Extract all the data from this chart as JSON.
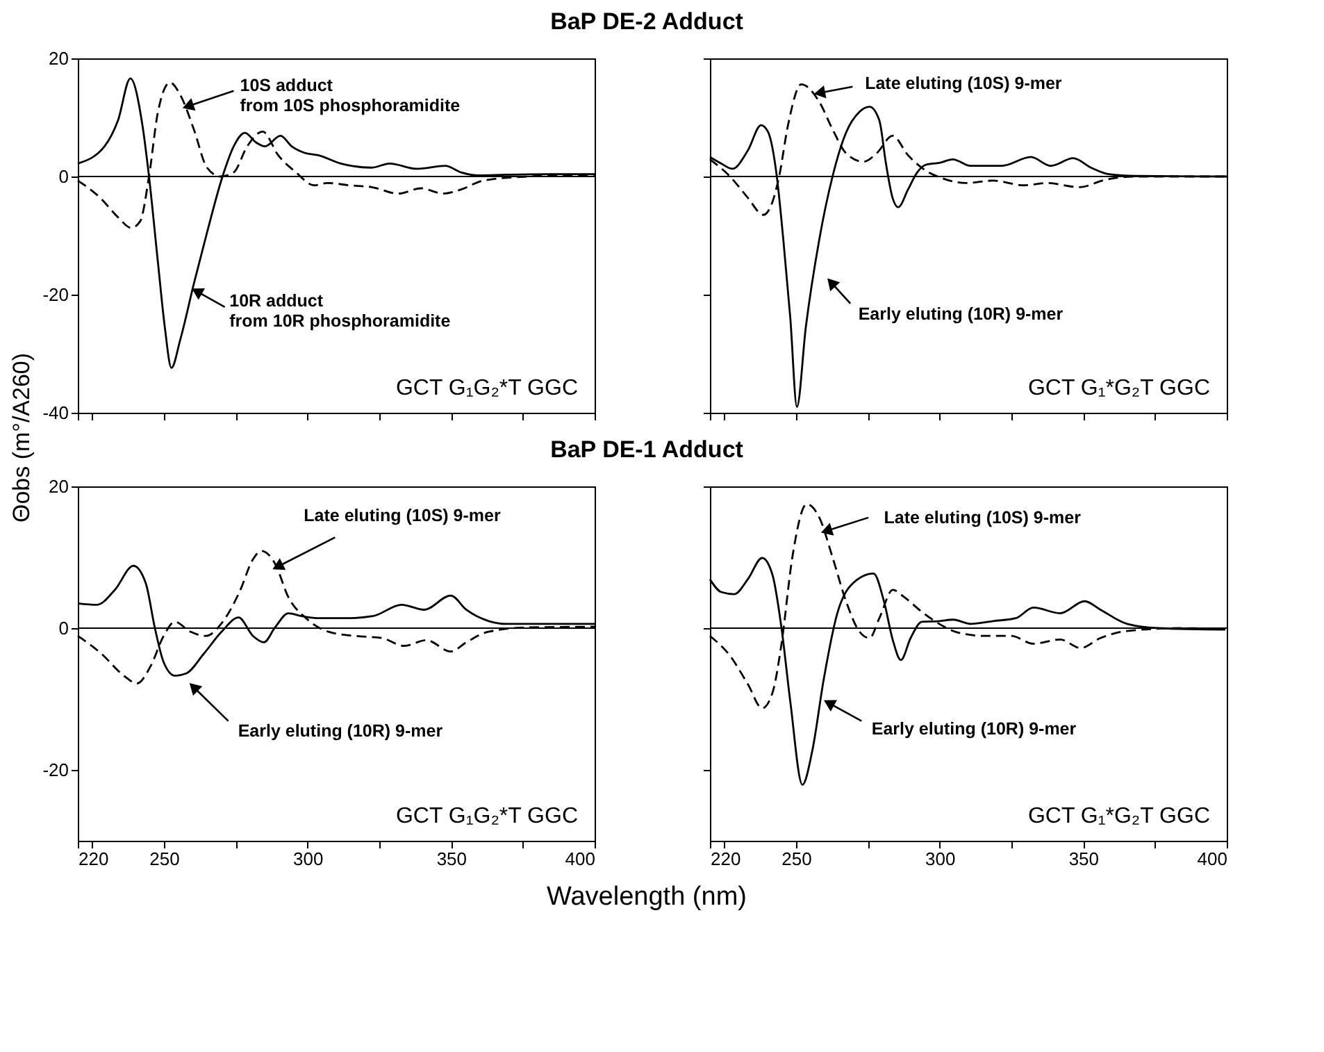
{
  "chart_data": [
    {
      "type": "line",
      "title": "BaP DE-2 Adduct",
      "xlim": [
        220,
        400
      ],
      "ylim": [
        -40,
        20
      ],
      "xticks": [
        220,
        {
          "value": 225,
          "label": null
        },
        250,
        {
          "value": 275,
          "label": null
        },
        300,
        {
          "value": 325,
          "label": null
        },
        350,
        {
          "value": 375,
          "label": null
        },
        400
      ],
      "yticks": [
        20,
        0,
        -20,
        -40
      ],
      "tick_labels": "y",
      "grid": false,
      "series": [
        {
          "color": "#000000",
          "line_style": "solid",
          "x": [
            220,
            229.3,
            234,
            238.3,
            242.5,
            244.8,
            247.9,
            250.3,
            252.6,
            255.7,
            260.4,
            265,
            270.4,
            274.3,
            278.2,
            282,
            285.2,
            290.6,
            294.5,
            299,
            303.8,
            311.6,
            322.4,
            328.6,
            338,
            348,
            353.5,
            359.7,
            369,
            384.5,
            400
          ],
          "values": [
            2.2,
            5.1,
            9.5,
            16.6,
            8.7,
            0,
            -14.5,
            -25.5,
            -32.4,
            -27.6,
            -18.2,
            -9.5,
            0,
            5.1,
            7.4,
            5.8,
            5.1,
            6.9,
            5.1,
            4,
            3.6,
            2.2,
            1.5,
            2.2,
            1.3,
            1.8,
            0.7,
            0.2,
            0.3,
            0.4,
            0.4
          ]
        },
        {
          "color": "#000000",
          "line_style": "dashed",
          "x": [
            220,
            227.8,
            234,
            238.6,
            241.7,
            244.8,
            247.9,
            252.1,
            255.7,
            260.4,
            265,
            269.7,
            274.3,
            279,
            284.4,
            289.8,
            296,
            302.3,
            307,
            314.7,
            322.4,
            331.7,
            339.5,
            347.3,
            353.5,
            361.2,
            376.8,
            400
          ],
          "values": [
            -0.7,
            -3.6,
            -6.9,
            -8.7,
            -7.6,
            0,
            10.9,
            15.9,
            13.8,
            8,
            1.5,
            0,
            0.7,
            5.1,
            7.6,
            3.6,
            0.7,
            -1.5,
            -1.1,
            -1.5,
            -1.8,
            -2.9,
            -2,
            -2.9,
            -2.2,
            -0.7,
            0,
            0.3
          ]
        }
      ],
      "ref_lines": [
        {
          "axis": "y",
          "value": 0,
          "color": "#000000"
        }
      ],
      "annotations": [
        {
          "text": "10S adduct\nfrom 10S phosphoramidite",
          "x": 259,
          "y": 12
        },
        {
          "text": "10R adduct\nfrom 10R phosphoramidite",
          "x": 262,
          "y": -19.6
        },
        "GCT G₁G₂*T GGC"
      ]
    },
    {
      "type": "line",
      "xlim": [
        220,
        400
      ],
      "ylim": [
        -40,
        20
      ],
      "xticks": [
        220,
        {
          "value": 225,
          "label": null
        },
        250,
        {
          "value": 275,
          "label": null
        },
        300,
        {
          "value": 325,
          "label": null
        },
        350,
        {
          "value": 375,
          "label": null
        },
        400
      ],
      "yticks": [
        20,
        0,
        -20,
        -40
      ],
      "tick_labels": false,
      "grid": false,
      "series": [
        {
          "color": "#000000",
          "line_style": "solid",
          "x": [
            220,
            223.9,
            227.8,
            233.2,
            237.8,
            240.2,
            243.3,
            245.6,
            248,
            250.3,
            253.4,
            258,
            262.7,
            267.3,
            272,
            275.6,
            279,
            281.3,
            283.6,
            285.6,
            289,
            292.2,
            295.3,
            299.9,
            304.6,
            310.8,
            321.7,
            331.8,
            338.7,
            346.5,
            352.7,
            358.9,
            368.2,
            400
          ],
          "values": [
            3.3,
            2.2,
            1.3,
            4.4,
            8.7,
            7.6,
            0,
            -10.9,
            -24,
            -39,
            -25.5,
            -10.9,
            0,
            7.3,
            10.9,
            11.8,
            9.5,
            2.2,
            -3.6,
            -5.2,
            -2.2,
            0.7,
            2,
            2.3,
            2.9,
            1.8,
            1.8,
            3.3,
            1.8,
            3.1,
            1.5,
            0.4,
            0.1,
            0
          ]
        },
        {
          "color": "#000000",
          "line_style": "dashed",
          "x": [
            220,
            227,
            233.2,
            238.6,
            241.7,
            244.1,
            247.2,
            251.8,
            258,
            262.7,
            267.3,
            273.5,
            278.2,
            283.6,
            289,
            293.7,
            301.5,
            309.2,
            318.6,
            329.4,
            337.2,
            348.8,
            357.4,
            368.2,
            400
          ],
          "values": [
            2.9,
            0,
            -3.6,
            -6.5,
            -4.4,
            0,
            8.7,
            15.6,
            12.7,
            8,
            4,
            2.5,
            4,
            6.9,
            3.6,
            1.5,
            -0.4,
            -1.1,
            -0.7,
            -1.5,
            -1.1,
            -1.8,
            -0.6,
            0,
            0
          ]
        }
      ],
      "ref_lines": [
        {
          "axis": "y",
          "value": 0,
          "color": "#000000"
        }
      ],
      "annotations": [
        {
          "text": "Late eluting (10S) 9-mer",
          "x": 258.8,
          "y": 14.2
        },
        {
          "text": "Early eluting (10R) 9-mer",
          "x": 262.7,
          "y": -18.2
        },
        "GCT G₁*G₂T GGC"
      ]
    },
    {
      "type": "line",
      "title": "BaP DE-1 Adduct",
      "xlabel": "Wavelength (nm)",
      "ylabel": "Θobs (m°/A260)",
      "xlim": [
        220,
        400
      ],
      "ylim": [
        -30,
        20
      ],
      "xticks": [
        220,
        {
          "value": 225,
          "label": null
        },
        250,
        {
          "value": 275,
          "label": null
        },
        300,
        {
          "value": 325,
          "label": null
        },
        350,
        {
          "value": 375,
          "label": null
        },
        400
      ],
      "yticks": [
        20,
        0,
        -20
      ],
      "grid": false,
      "series": [
        {
          "color": "#000000",
          "line_style": "solid",
          "x": [
            220,
            226.7,
            232.9,
            239.4,
            243.7,
            246.8,
            249.9,
            253.8,
            257.7,
            263.9,
            270.1,
            276,
            281,
            284.8,
            288.7,
            293.3,
            298,
            304.2,
            313.5,
            322.8,
            332.8,
            340.6,
            349.9,
            355.3,
            363.1,
            369.3,
            400
          ],
          "values": [
            3.5,
            3.3,
            5.4,
            8.8,
            6.3,
            0.1,
            -4.8,
            -6.7,
            -6.4,
            -3.6,
            -0.5,
            1.5,
            -1.1,
            -2,
            0.1,
            2.1,
            1.7,
            1.4,
            1.4,
            1.7,
            3.3,
            2.6,
            4.6,
            2.6,
            1,
            0.6,
            0.6
          ]
        },
        {
          "color": "#000000",
          "line_style": "dashed",
          "x": [
            220,
            228.2,
            236,
            240.6,
            245.3,
            249.9,
            253.8,
            259.2,
            264.6,
            270.1,
            276.3,
            281,
            284,
            288.7,
            293.3,
            299.5,
            307.3,
            316.6,
            325.9,
            333.6,
            341.4,
            349.9,
            355.3,
            363.1,
            377,
            400
          ],
          "values": [
            -1.1,
            -3.6,
            -6.7,
            -7.8,
            -5.4,
            -1.1,
            0.9,
            -0.5,
            -1.1,
            0.7,
            5.1,
            9.7,
            10.9,
            9.1,
            4.4,
            1.4,
            -0.5,
            -1.1,
            -1.4,
            -2.5,
            -1.7,
            -3.3,
            -2,
            -0.5,
            0.1,
            0.2
          ]
        }
      ],
      "ref_lines": [
        {
          "axis": "y",
          "value": 0,
          "color": "#000000"
        }
      ],
      "annotations": [
        {
          "text": "Late eluting (10S) 9-mer",
          "x": 290.2,
          "y": 8.8
        },
        {
          "text": "Early eluting (10R) 9-mer",
          "x": 260.8,
          "y": -8.5
        },
        "GCT G₁G₂*T GGC"
      ]
    },
    {
      "type": "line",
      "xlim": [
        220,
        400
      ],
      "ylim": [
        -30,
        20
      ],
      "xticks": [
        220,
        {
          "value": 225,
          "label": null
        },
        250,
        {
          "value": 275,
          "label": null
        },
        300,
        {
          "value": 325,
          "label": null
        },
        350,
        {
          "value": 375,
          "label": null
        },
        400
      ],
      "yticks": [
        20,
        0,
        -20
      ],
      "tick_labels": "x",
      "grid": false,
      "series": [
        {
          "color": "#000000",
          "line_style": "solid",
          "x": [
            220,
            223.9,
            228.5,
            233.2,
            238.2,
            241.8,
            244.9,
            248,
            252.2,
            255.7,
            259.6,
            264.3,
            269,
            277,
            280.6,
            283.7,
            286.5,
            289.9,
            293.8,
            300,
            304.7,
            310.9,
            318.7,
            326.5,
            332.7,
            342,
            350.5,
            356,
            365.3,
            376.2,
            399.5
          ],
          "values": [
            6.9,
            5.1,
            4.8,
            6.9,
            9.9,
            7.5,
            0.1,
            -10.4,
            -22.1,
            -17.2,
            -7.3,
            2,
            6,
            7.7,
            3.8,
            -1.7,
            -4.5,
            -1.4,
            0.9,
            1,
            1.2,
            0.6,
            1,
            1.4,
            2.9,
            2.1,
            3.8,
            2.6,
            0.6,
            0,
            -0.2
          ]
        },
        {
          "color": "#000000",
          "line_style": "dashed",
          "x": [
            220,
            227,
            233.2,
            238.2,
            241.8,
            244.9,
            248.7,
            253.7,
            258.1,
            262.7,
            267.4,
            272.1,
            275.6,
            279,
            283.7,
            287.6,
            293.8,
            301.6,
            306.2,
            315.6,
            324.9,
            332.7,
            342,
            349,
            356,
            365.3,
            384,
            399.5
          ],
          "values": [
            -1.1,
            -3.9,
            -7.9,
            -11.3,
            -9.1,
            -2.3,
            10,
            17.5,
            15.6,
            10,
            3.8,
            -0.5,
            -1.4,
            1.4,
            5.4,
            4.4,
            2.3,
            0.2,
            -0.6,
            -1.1,
            -1.1,
            -2.2,
            -1.6,
            -2.8,
            -1.4,
            -0.4,
            0,
            -0.1
          ]
        }
      ],
      "ref_lines": [
        {
          "axis": "y",
          "value": 0,
          "color": "#000000"
        }
      ],
      "annotations": [
        {
          "text": "Late eluting (10S) 9-mer",
          "x": 261.2,
          "y": 13.8
        },
        {
          "text": "Early eluting (10R) 9-mer",
          "x": 262,
          "y": -10.7
        },
        "GCT G₁*G₂T GGC"
      ]
    }
  ]
}
